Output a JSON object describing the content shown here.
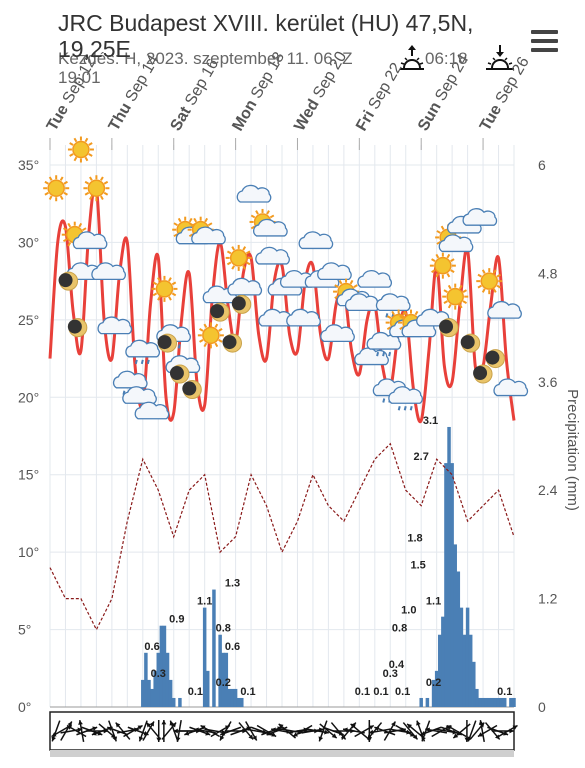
{
  "header": {
    "title": "JRC Budapest XVIII. kerület (HU) 47,5N, 19,25E",
    "subtitle_line1": "Kezdés: H, 2023. szeptember 11. 06. Z",
    "subtitle_line2": "19:01",
    "sunrise_time": "06:18",
    "sunrise_icon": "sunrise-icon",
    "sunset_icon": "sunset-icon",
    "menu_icon": "hamburger-menu-icon"
  },
  "chart_data": {
    "type": "line",
    "x_labels": [
      {
        "day": "Tue",
        "date": "Sep 12"
      },
      {
        "day": "Thu",
        "date": "Sep 14"
      },
      {
        "day": "Sat",
        "date": "Sep 16"
      },
      {
        "day": "Mon",
        "date": "Sep 18"
      },
      {
        "day": "Wed",
        "date": "Sep 20"
      },
      {
        "day": "Fri",
        "date": "Sep 22"
      },
      {
        "day": "Sun",
        "date": "Sep 24"
      },
      {
        "day": "Tue",
        "date": "Sep 26"
      }
    ],
    "left_axis": {
      "ticks": [
        "35°",
        "30°",
        "25°",
        "20°",
        "15°",
        "10°",
        "5°",
        "0°"
      ],
      "ylim": [
        0,
        35
      ]
    },
    "right_axis": {
      "label": "Precipitation (mm)",
      "ticks": [
        "6",
        "4.8",
        "3.6",
        "2.4",
        "1.2",
        "0"
      ],
      "ylim": [
        0,
        6
      ]
    },
    "temperature_series": {
      "color": "#e8403a",
      "days": [
        0,
        0.25,
        0.5,
        0.75,
        1,
        1.25,
        1.5,
        1.75,
        2,
        2.25,
        2.5,
        2.75,
        3,
        3.25,
        3.5,
        3.75,
        4,
        4.25,
        4.5,
        4.75,
        5,
        5.25,
        5.5,
        5.75,
        6,
        6.25,
        6.5,
        6.75,
        7,
        7.25,
        7.5,
        7.75,
        8,
        8.25,
        8.5,
        8.75,
        9,
        9.25,
        9.5,
        9.75,
        10,
        10.25,
        10.5,
        10.75,
        11,
        11.25,
        11.5,
        11.75,
        12,
        12.25,
        12.5,
        12.75,
        13,
        13.25,
        13.5,
        13.75,
        14,
        14.25,
        14.5,
        14.75,
        15
      ],
      "values": [
        22.5,
        30,
        31,
        25.5,
        23,
        30.5,
        33.5,
        25,
        22.5,
        28,
        30,
        22,
        19.5,
        26,
        29,
        20,
        19,
        25,
        28,
        21,
        19.5,
        26.5,
        30,
        26,
        23.5,
        28,
        29,
        24,
        22.5,
        27.5,
        28.5,
        24,
        23,
        27.5,
        28.5,
        24,
        22.5,
        26,
        27,
        23,
        21.5,
        25,
        26,
        22,
        20.5,
        24,
        25.5,
        20.5,
        18.5,
        23,
        28.5,
        22,
        21,
        26,
        29.5,
        22,
        22,
        26,
        29,
        22.5,
        18.5
      ]
    },
    "dew_series": {
      "color": "#8a1a1a",
      "days": [
        0,
        0.5,
        1,
        1.5,
        2,
        2.5,
        3,
        3.5,
        4,
        4.5,
        5,
        5.5,
        6,
        6.5,
        7,
        7.5,
        8,
        8.5,
        9,
        9.5,
        10,
        10.5,
        11,
        11.5,
        12,
        12.5,
        13,
        13.5,
        14,
        14.5,
        15
      ],
      "values": [
        9,
        7,
        7,
        5,
        7,
        12,
        16,
        14,
        11,
        14,
        15,
        10,
        11,
        15,
        13,
        10,
        12,
        15,
        13,
        12,
        14,
        16,
        17,
        14,
        13,
        16,
        15,
        12,
        13,
        14,
        11
      ]
    },
    "precipitation_bars": {
      "color": "#4a7fb5",
      "days": [
        3.0,
        3.1,
        3.2,
        3.3,
        3.4,
        3.5,
        3.6,
        3.7,
        3.8,
        3.9,
        4.0,
        4.2,
        5.0,
        5.1,
        5.3,
        5.5,
        5.6,
        5.7,
        5.8,
        5.9,
        6.0,
        6.1,
        6.2,
        12.0,
        12.2,
        12.4,
        12.5,
        12.6,
        12.7,
        12.8,
        12.9,
        13.0,
        13.1,
        13.2,
        13.3,
        13.4,
        13.5,
        13.6,
        13.7,
        13.8,
        13.9,
        14.0,
        14.1,
        14.2,
        14.3,
        14.4,
        14.5,
        14.6,
        14.7,
        14.9,
        15.0
      ],
      "values": [
        0.3,
        0.6,
        0.3,
        0.2,
        0.4,
        0.6,
        0.9,
        0.9,
        0.6,
        0.3,
        0.1,
        0.1,
        1.1,
        0.4,
        1.3,
        0.8,
        0.6,
        0.6,
        0.2,
        0.2,
        0.2,
        0.1,
        0.1,
        0.1,
        0.1,
        0.3,
        0.4,
        0.8,
        1.0,
        2.7,
        3.1,
        2.7,
        1.8,
        1.5,
        1.1,
        0.8,
        1.1,
        0.8,
        0.5,
        0.2,
        0.1,
        0.1,
        0.1,
        0.1,
        0.1,
        0.1,
        0.1,
        0.1,
        0.1,
        0.1,
        0.1
      ]
    },
    "precipitation_labels": [
      {
        "day": 3.3,
        "value": "0.6"
      },
      {
        "day": 3.5,
        "value": "0.3"
      },
      {
        "day": 4.1,
        "value": "0.9"
      },
      {
        "day": 4.7,
        "value": "0.1"
      },
      {
        "day": 5.0,
        "value": "1.1"
      },
      {
        "day": 5.9,
        "value": "1.3"
      },
      {
        "day": 5.6,
        "value": "0.8"
      },
      {
        "day": 5.9,
        "value": "0.6"
      },
      {
        "day": 5.6,
        "value": "0.2"
      },
      {
        "day": 6.4,
        "value": "0.1"
      },
      {
        "day": 10.1,
        "value": "0.1"
      },
      {
        "day": 10.7,
        "value": "0.1"
      },
      {
        "day": 11.0,
        "value": "0.3"
      },
      {
        "day": 11.2,
        "value": "0.4"
      },
      {
        "day": 11.3,
        "value": "0.8"
      },
      {
        "day": 11.6,
        "value": "1.0"
      },
      {
        "day": 12.0,
        "value": "2.7"
      },
      {
        "day": 12.3,
        "value": "3.1"
      },
      {
        "day": 11.8,
        "value": "1.8"
      },
      {
        "day": 11.9,
        "value": "1.5"
      },
      {
        "day": 12.4,
        "value": "1.1"
      },
      {
        "day": 11.4,
        "value": "0.1"
      },
      {
        "day": 12.4,
        "value": "0.2"
      },
      {
        "day": 14.7,
        "value": "0.1"
      }
    ],
    "weather_icons": [
      {
        "day": 0.2,
        "temp": 33.5,
        "icon": "sun-icon"
      },
      {
        "day": 0.8,
        "temp": 30.5,
        "icon": "sun-icon"
      },
      {
        "day": 1.0,
        "temp": 36,
        "icon": "sun-icon"
      },
      {
        "day": 1.5,
        "temp": 33.5,
        "icon": "sun-icon"
      },
      {
        "day": 1.3,
        "temp": 30,
        "icon": "cloud-icon"
      },
      {
        "day": 1.1,
        "temp": 28,
        "icon": "cloud-icon"
      },
      {
        "day": 1.9,
        "temp": 28,
        "icon": "cloud-icon"
      },
      {
        "day": 2.1,
        "temp": 24.5,
        "icon": "cloud-icon"
      },
      {
        "day": 2.6,
        "temp": 21,
        "icon": "cloud-rain-icon"
      },
      {
        "day": 2.9,
        "temp": 20,
        "icon": "cloud-icon"
      },
      {
        "day": 3.3,
        "temp": 19,
        "icon": "cloud-icon"
      },
      {
        "day": 3.0,
        "temp": 23,
        "icon": "cloud-rain-icon"
      },
      {
        "day": 3.7,
        "temp": 27,
        "icon": "sun-icon"
      },
      {
        "day": 4.0,
        "temp": 24,
        "icon": "cloud-rain-icon"
      },
      {
        "day": 4.3,
        "temp": 22,
        "icon": "cloud-icon"
      },
      {
        "day": 4.5,
        "temp": 30.5,
        "icon": "sun-cloud-icon"
      },
      {
        "day": 5.0,
        "temp": 30.5,
        "icon": "sun-cloud-icon"
      },
      {
        "day": 5.5,
        "temp": 26.5,
        "icon": "cloud-icon"
      },
      {
        "day": 5.2,
        "temp": 24,
        "icon": "sun-icon"
      },
      {
        "day": 6.1,
        "temp": 29,
        "icon": "sun-icon"
      },
      {
        "day": 6.3,
        "temp": 27,
        "icon": "cloud-icon"
      },
      {
        "day": 6.6,
        "temp": 33,
        "icon": "cloud-icon"
      },
      {
        "day": 7.0,
        "temp": 31,
        "icon": "sun-cloud-icon"
      },
      {
        "day": 7.2,
        "temp": 29,
        "icon": "cloud-icon"
      },
      {
        "day": 7.3,
        "temp": 25,
        "icon": "cloud-icon"
      },
      {
        "day": 7.6,
        "temp": 27,
        "icon": "cloud-icon"
      },
      {
        "day": 8.0,
        "temp": 27.5,
        "icon": "cloud-icon"
      },
      {
        "day": 8.2,
        "temp": 25,
        "icon": "cloud-icon"
      },
      {
        "day": 8.6,
        "temp": 30,
        "icon": "cloud-icon"
      },
      {
        "day": 8.8,
        "temp": 27.5,
        "icon": "cloud-icon"
      },
      {
        "day": 9.2,
        "temp": 28,
        "icon": "cloud-icon"
      },
      {
        "day": 9.3,
        "temp": 24,
        "icon": "cloud-icon"
      },
      {
        "day": 9.7,
        "temp": 26.5,
        "icon": "sun-cloud-icon"
      },
      {
        "day": 10.1,
        "temp": 26,
        "icon": "cloud-icon"
      },
      {
        "day": 10.4,
        "temp": 22.5,
        "icon": "cloud-icon"
      },
      {
        "day": 10.5,
        "temp": 27.5,
        "icon": "cloud-icon"
      },
      {
        "day": 10.8,
        "temp": 23.5,
        "icon": "cloud-rain-icon"
      },
      {
        "day": 11.1,
        "temp": 26,
        "icon": "cloud-rain-icon"
      },
      {
        "day": 11.4,
        "temp": 24.5,
        "icon": "sun-cloud-icon"
      },
      {
        "day": 11.0,
        "temp": 20.5,
        "icon": "cloud-rain-icon"
      },
      {
        "day": 11.5,
        "temp": 20,
        "icon": "cloud-rain-icon"
      },
      {
        "day": 11.8,
        "temp": 24.5,
        "icon": "sun-cloud-icon"
      },
      {
        "day": 12.4,
        "temp": 25,
        "icon": "cloud-icon"
      },
      {
        "day": 12.7,
        "temp": 28.5,
        "icon": "sun-icon"
      },
      {
        "day": 13.0,
        "temp": 30,
        "icon": "sun-cloud-icon"
      },
      {
        "day": 13.1,
        "temp": 26.5,
        "icon": "sun-icon"
      },
      {
        "day": 13.4,
        "temp": 31,
        "icon": "cloud-icon"
      },
      {
        "day": 13.9,
        "temp": 31.5,
        "icon": "cloud-icon"
      },
      {
        "day": 14.2,
        "temp": 27.5,
        "icon": "sun-icon"
      },
      {
        "day": 14.7,
        "temp": 25.5,
        "icon": "cloud-icon"
      },
      {
        "day": 14.9,
        "temp": 20.5,
        "icon": "cloud-icon"
      }
    ],
    "moon_icons": [
      {
        "day": 0.6,
        "temp": 27.5
      },
      {
        "day": 0.9,
        "temp": 24.5
      },
      {
        "day": 3.8,
        "temp": 23.5
      },
      {
        "day": 4.2,
        "temp": 21.5
      },
      {
        "day": 4.6,
        "temp": 20.5
      },
      {
        "day": 5.5,
        "temp": 25.5
      },
      {
        "day": 5.9,
        "temp": 23.5
      },
      {
        "day": 6.2,
        "temp": 26
      },
      {
        "day": 12.9,
        "temp": 24.5
      },
      {
        "day": 13.6,
        "temp": 23.5
      },
      {
        "day": 14.0,
        "temp": 21.5
      },
      {
        "day": 14.4,
        "temp": 22.5
      }
    ],
    "wind_arrows": [
      200,
      240,
      30,
      80,
      300,
      350,
      70,
      110,
      90,
      250,
      130,
      160,
      290,
      320,
      80,
      60,
      110,
      200,
      30,
      320,
      180,
      0,
      40,
      340,
      190,
      270,
      90,
      250,
      110,
      280,
      300,
      100,
      60,
      210,
      250,
      90,
      70,
      140,
      150,
      100,
      110,
      120,
      70,
      250,
      280,
      310,
      100,
      80,
      240,
      90,
      80,
      100,
      200,
      130,
      110,
      140,
      90,
      40,
      280,
      310,
      60,
      180,
      220,
      260,
      290,
      30,
      80,
      100,
      120,
      140,
      310,
      340,
      200,
      250,
      280,
      60,
      100,
      110,
      300,
      230,
      180,
      200,
      40,
      350,
      240,
      140,
      110,
      90,
      60
    ]
  }
}
